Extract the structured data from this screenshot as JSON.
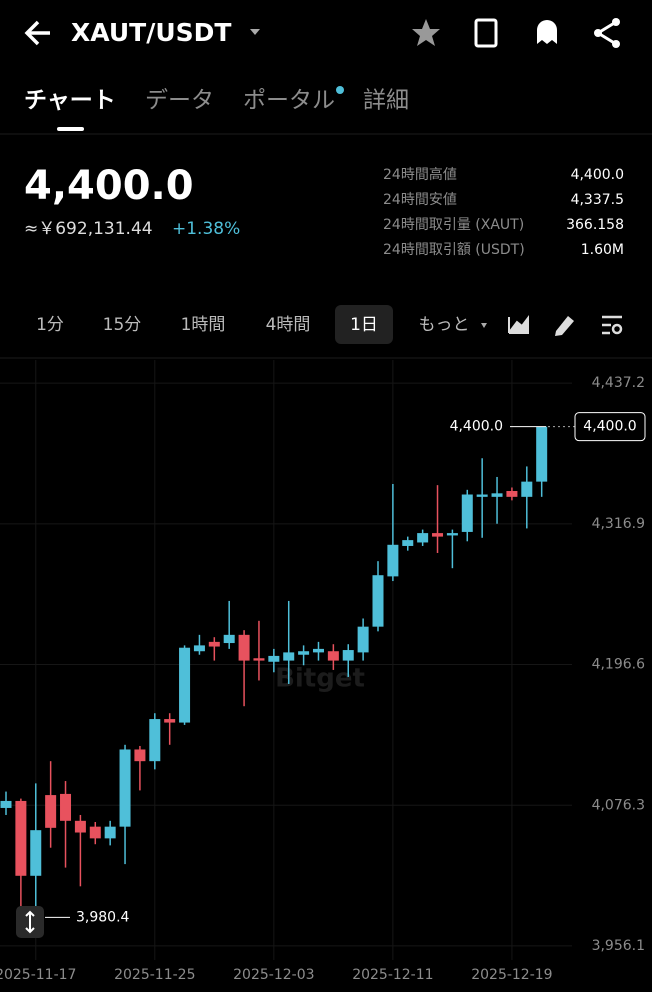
{
  "header": {
    "title": "XAUT/USDT"
  },
  "tabs": [
    "チャート",
    "データ",
    "ポータル",
    "詳細"
  ],
  "price": {
    "last": "4,400.0",
    "converted": "≈￥692,131.44",
    "change": "+1.38%"
  },
  "stats": [
    {
      "label": "24時間高値",
      "value": "4,400.0"
    },
    {
      "label": "24時間安値",
      "value": "4,337.5"
    },
    {
      "label": "24時間取引量 (XAUT)",
      "value": "366.158"
    },
    {
      "label": "24時間取引額 (USDT)",
      "value": "1.60M"
    }
  ],
  "intervals": [
    "1分",
    "15分",
    "1時間",
    "4時間",
    "1日",
    "もっと"
  ],
  "chart_data": {
    "type": "candlestick",
    "watermark": "Bitget",
    "categories": [
      null,
      null,
      "2025-11-17",
      null,
      null,
      null,
      null,
      null,
      null,
      null,
      "2025-11-25",
      null,
      null,
      null,
      null,
      null,
      null,
      null,
      "2025-12-03",
      null,
      null,
      null,
      null,
      null,
      null,
      null,
      "2025-12-11",
      null,
      null,
      null,
      null,
      null,
      null,
      null,
      "2025-12-19",
      null,
      null
    ],
    "open": [
      4074,
      4080,
      4016,
      4085,
      4086,
      4063,
      4058,
      4048,
      4058,
      4124,
      4114,
      4150,
      4147,
      4208,
      4216,
      4215,
      4222,
      4202,
      4199,
      4200,
      4205,
      4207,
      4208,
      4200,
      4207,
      4229,
      4272,
      4298,
      4301,
      4309,
      4307,
      4310,
      4340,
      4340,
      4345,
      4340,
      4353
    ],
    "high": [
      4088,
      4082,
      4095,
      4114,
      4097,
      4068,
      4062,
      4063,
      4128,
      4127,
      4155,
      4155,
      4213,
      4222,
      4220,
      4251,
      4226,
      4234,
      4210,
      4251,
      4213,
      4216,
      4214,
      4214,
      4236,
      4285,
      4351,
      4306,
      4312,
      4350,
      4312,
      4346,
      4373,
      4357,
      4348,
      4366,
      4400
    ],
    "low": [
      4068,
      3990,
      3980.4,
      4040,
      4023,
      4007,
      4043,
      4042,
      4026,
      4089,
      4107,
      4128,
      4145,
      4205,
      4200,
      4210,
      4161,
      4183,
      4190,
      4180,
      4196,
      4200,
      4192,
      4186,
      4200,
      4225,
      4268,
      4294,
      4298,
      4292,
      4279,
      4302,
      4305,
      4317,
      4337,
      4313,
      4340
    ],
    "close": [
      4080,
      4016,
      4055,
      4057,
      4063,
      4053,
      4048,
      4058,
      4124,
      4114,
      4150,
      4147,
      4211,
      4213,
      4212,
      4222,
      4200,
      4200,
      4204,
      4207,
      4208,
      4210,
      4200,
      4209,
      4229,
      4273,
      4299,
      4303,
      4309,
      4306,
      4309,
      4342,
      4342,
      4343,
      4340,
      4353,
      4400
    ],
    "up_color": "#4fbfd9",
    "down_color": "#e8525e",
    "ylim": [
      3944,
      4457
    ],
    "yticks": [
      {
        "value": 3956.1,
        "label": "3,956.1"
      },
      {
        "value": 4076.3,
        "label": "4,076.3"
      },
      {
        "value": 4196.6,
        "label": "4,196.6"
      },
      {
        "value": 4316.9,
        "label": "4,316.9"
      },
      {
        "value": 4437.2,
        "label": "4,437.2"
      }
    ],
    "grid": true,
    "high_marker": {
      "value": 4400,
      "label": "4,400.0"
    },
    "low_marker": {
      "value": 3980.4,
      "label": "3,980.4"
    },
    "last_price": {
      "value": 4400,
      "label": "4,400.0"
    }
  }
}
